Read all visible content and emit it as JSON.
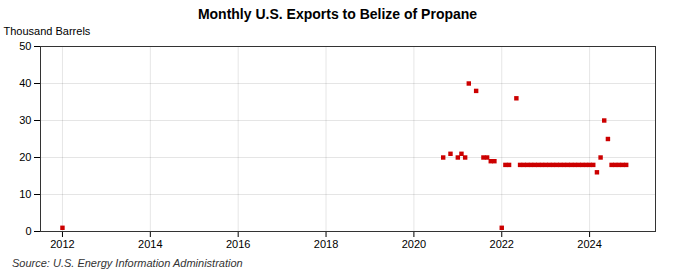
{
  "chart_data": {
    "type": "scatter",
    "title": "Monthly U.S. Exports to Belize of Propane",
    "ylabel": "Thousand Barrels",
    "source": "Source: U.S. Energy Information Administration",
    "color": "#cc0000",
    "marker": "square",
    "grid": true,
    "xlim": [
      2011.5,
      2025.5
    ],
    "ylim": [
      0,
      50
    ],
    "xticks": [
      2012,
      2014,
      2016,
      2018,
      2020,
      2022,
      2024
    ],
    "yticks": [
      0,
      10,
      20,
      30,
      40,
      50
    ],
    "x": [
      2012.0,
      2020.667,
      2020.833,
      2021.0,
      2021.083,
      2021.167,
      2021.25,
      2021.417,
      2021.583,
      2021.667,
      2021.75,
      2021.833,
      2022.0,
      2022.083,
      2022.167,
      2022.333,
      2022.417,
      2022.5,
      2022.583,
      2022.667,
      2022.75,
      2022.833,
      2022.917,
      2023.0,
      2023.083,
      2023.167,
      2023.25,
      2023.333,
      2023.417,
      2023.5,
      2023.583,
      2023.667,
      2023.75,
      2023.833,
      2023.917,
      2024.0,
      2024.083,
      2024.167,
      2024.25,
      2024.333,
      2024.417,
      2024.5,
      2024.583,
      2024.667,
      2024.75,
      2024.833
    ],
    "values": [
      1,
      20,
      21,
      20,
      21,
      20,
      40,
      38,
      20,
      20,
      19,
      19,
      1,
      18,
      18,
      36,
      18,
      18,
      18,
      18,
      18,
      18,
      18,
      18,
      18,
      18,
      18,
      18,
      18,
      18,
      18,
      18,
      18,
      18,
      18,
      18,
      18,
      16,
      20,
      30,
      25,
      18,
      18,
      18,
      18,
      18
    ]
  }
}
